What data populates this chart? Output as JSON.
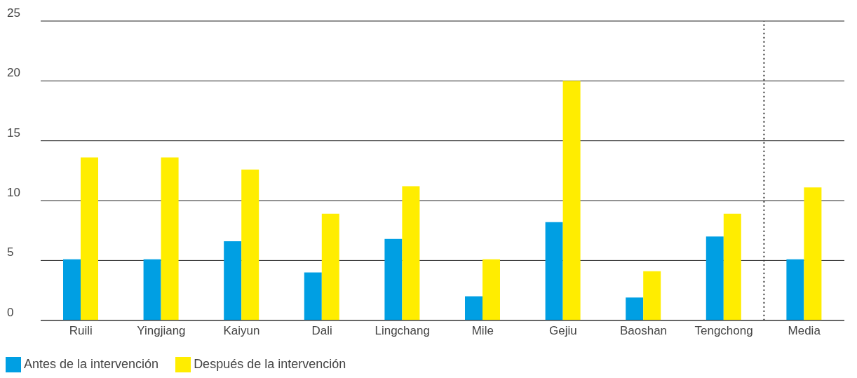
{
  "chart_data": {
    "type": "bar",
    "categories": [
      "Ruili",
      "Yingjiang",
      "Kaiyun",
      "Dali",
      "Lingchang",
      "Mile",
      "Gejiu",
      "Baoshan",
      "Tengchong",
      "Media"
    ],
    "series": [
      {
        "name": "Antes de la intervención",
        "color": "#009fe3",
        "values": [
          5.1,
          5.1,
          6.6,
          4.0,
          6.8,
          2.0,
          8.2,
          1.9,
          7.0,
          5.1
        ]
      },
      {
        "name": "Después de la intervención",
        "color": "#ffed00",
        "values": [
          13.6,
          13.6,
          12.6,
          8.9,
          11.2,
          5.1,
          20.0,
          4.1,
          8.9,
          11.1
        ]
      }
    ],
    "ylim": [
      0,
      25
    ],
    "yticks": [
      0,
      5,
      10,
      15,
      20,
      25
    ],
    "grid": "y",
    "legend": "bottom left",
    "ref_lines": [
      {
        "axis": "x",
        "value": "Media",
        "line_style": "dotted",
        "color": "#333333"
      }
    ]
  }
}
